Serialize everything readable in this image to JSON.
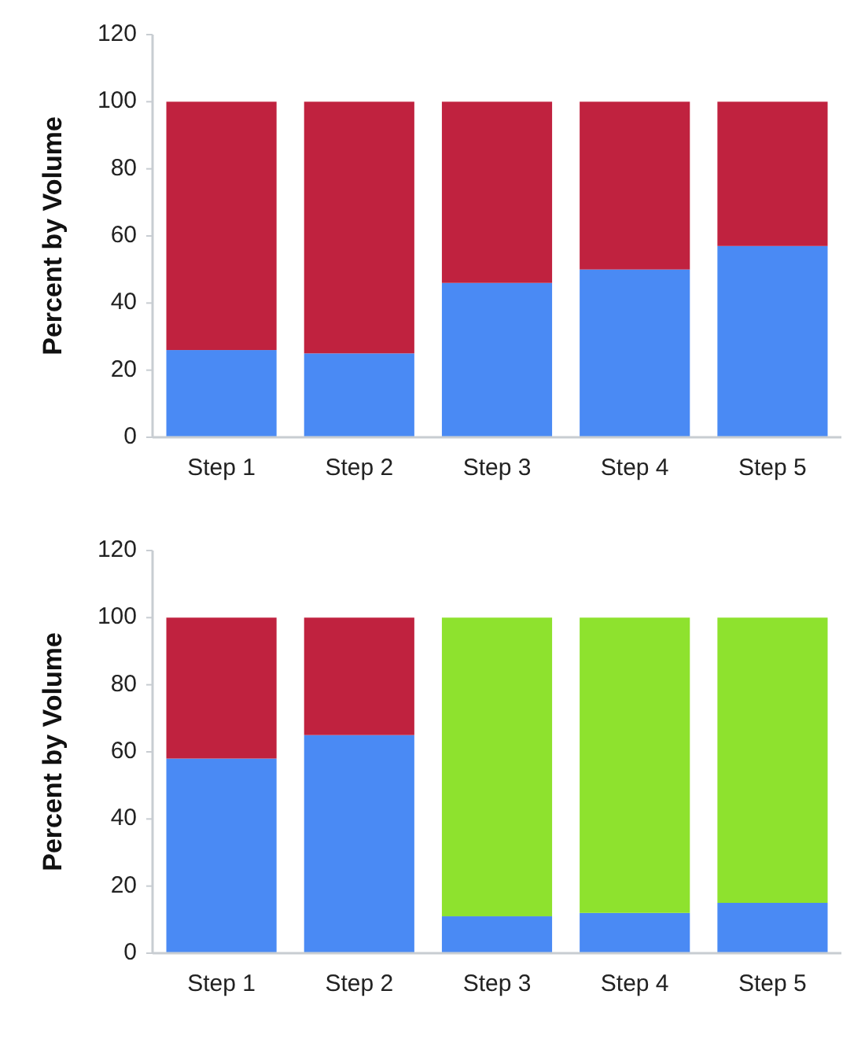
{
  "chart_data": [
    {
      "type": "bar",
      "stacked": true,
      "ylabel": "Percent by Volume",
      "categories": [
        "Step 1",
        "Step 2",
        "Step 3",
        "Step 4",
        "Step 5"
      ],
      "ylim": [
        0,
        120
      ],
      "yticks": [
        0,
        20,
        40,
        60,
        80,
        100,
        120
      ],
      "grid": false,
      "series": [
        {
          "color": "#4a8af4",
          "values": [
            26,
            25,
            46,
            50,
            57
          ]
        },
        {
          "color": "#c0223f",
          "values": [
            74,
            75,
            54,
            50,
            43
          ]
        }
      ]
    },
    {
      "type": "bar",
      "stacked": true,
      "ylabel": "Percent by Volume",
      "categories": [
        "Step 1",
        "Step 2",
        "Step 3",
        "Step 4",
        "Step 5"
      ],
      "ylim": [
        0,
        120
      ],
      "yticks": [
        0,
        20,
        40,
        60,
        80,
        100,
        120
      ],
      "grid": false,
      "series": [
        {
          "color": "#4a8af4",
          "values": [
            58,
            65,
            11,
            12,
            15
          ]
        },
        {
          "color": "#c0223f",
          "values": [
            42,
            35,
            null,
            null,
            null
          ]
        },
        {
          "color": "#8ee22e",
          "values": [
            null,
            null,
            89,
            88,
            85
          ]
        }
      ]
    }
  ]
}
